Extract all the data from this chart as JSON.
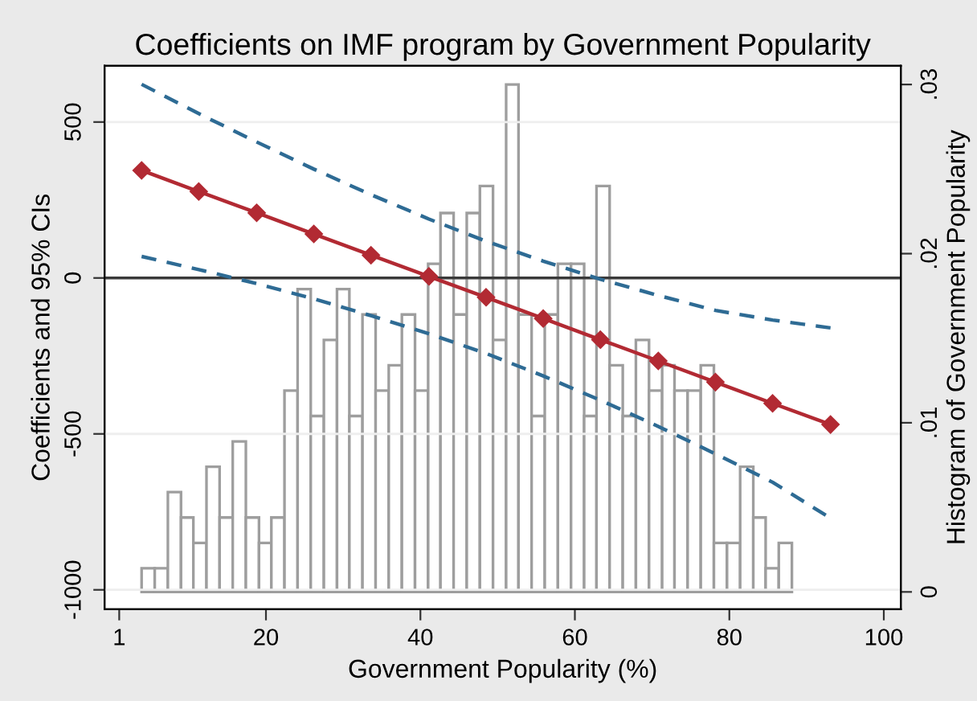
{
  "chart_data": {
    "type": "line",
    "title": "Coefficients on IMF program by Government Popularity",
    "xlabel": "Government Popularity (%)",
    "ylabel": "Coefficients and 95% CIs",
    "y2label": "Histogram of Government Popularity",
    "x": [
      3.9,
      11.3,
      18.8,
      26.2,
      33.6,
      41.1,
      48.5,
      55.9,
      63.3,
      70.8,
      78.2,
      85.6,
      93.1
    ],
    "series": [
      {
        "type": "histogram",
        "axis": "y2",
        "color": "#9e9e9e",
        "bins": [
          3.9,
          5.6,
          7.3,
          9.0,
          10.6,
          12.3,
          14.0,
          15.7,
          17.4,
          19.1,
          20.7,
          22.4,
          24.1,
          25.8,
          27.5,
          29.2,
          30.8,
          32.5,
          34.2,
          35.9,
          37.6,
          39.3,
          41.0,
          42.6,
          44.3,
          46.0,
          47.7,
          49.4,
          51.1,
          52.7,
          54.4,
          56.1,
          57.8,
          59.5,
          61.2,
          62.8,
          64.5,
          66.2,
          67.9,
          69.6,
          71.3,
          72.9,
          74.6,
          76.3,
          78.0,
          79.7,
          81.4,
          83.1,
          84.7,
          86.4,
          88.1
        ],
        "values": [
          0.0014,
          0.0014,
          0.0059,
          0.0044,
          0.0029,
          0.0074,
          0.0044,
          0.0089,
          0.0044,
          0.0029,
          0.0044,
          0.0119,
          0.0179,
          0.0104,
          0.0149,
          0.0179,
          0.0104,
          0.0164,
          0.0119,
          0.0134,
          0.0164,
          0.0119,
          0.0194,
          0.0224,
          0.0164,
          0.0224,
          0.024,
          0.0149,
          0.03,
          0.0164,
          0.0104,
          0.0164,
          0.0194,
          0.0194,
          0.0104,
          0.024,
          0.0134,
          0.0104,
          0.0149,
          0.0119,
          0.0134,
          0.0119,
          0.0119,
          0.0134,
          0.0029,
          0.0029,
          0.0074,
          0.0044,
          0.0014,
          0.0029
        ]
      },
      {
        "color": "#2e6b94",
        "line_style": "dashed",
        "marker": "none",
        "values": [
          621,
          527,
          436,
          349,
          267,
          189,
          118,
          54,
          -4,
          -56,
          -104,
          -135,
          -160
        ]
      },
      {
        "color": "#2e6b94",
        "line_style": "dashed",
        "marker": "none",
        "values": [
          69,
          27,
          -18,
          -67,
          -121,
          -179,
          -242,
          -314,
          -392,
          -476,
          -564,
          -655,
          -770
        ]
      },
      {
        "color": "#b22a33",
        "line_style": "solid",
        "marker": "diamond",
        "values": [
          345,
          277,
          209,
          141,
          73,
          5,
          -62,
          -130,
          -198,
          -266,
          -334,
          -402,
          -470
        ]
      }
    ],
    "xlim": [
      -0.9,
      102.2
    ],
    "xticks": [
      1,
      20,
      40,
      60,
      80,
      100
    ],
    "ylim": [
      -1062,
      680
    ],
    "yticks": [
      -1000,
      -500,
      0,
      500
    ],
    "y2lim": [
      -0.00102,
      0.0311
    ],
    "y2ticks": [
      0,
      {
        "value": 0.01,
        "label": ".01"
      },
      {
        "value": 0.02,
        "label": ".02"
      },
      {
        "value": 0.03,
        "label": ".03"
      }
    ],
    "ref_lines": [
      {
        "axis": "y",
        "value": 0,
        "color": "#3a3a3a"
      }
    ],
    "grid": "y",
    "legend": false
  }
}
